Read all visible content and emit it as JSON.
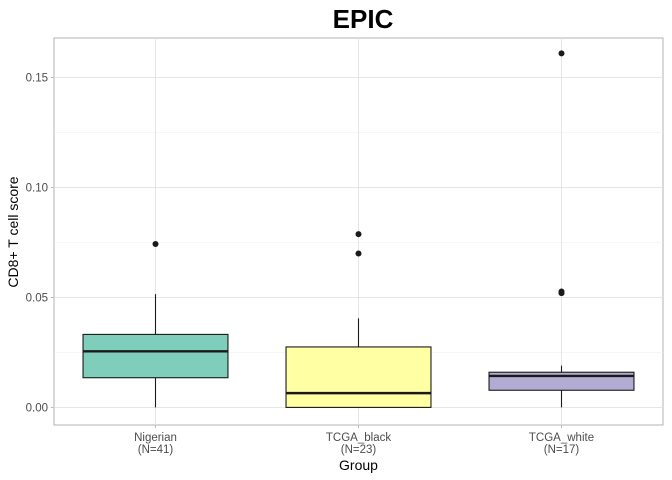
{
  "chart_data": {
    "type": "boxplot",
    "title": "EPIC",
    "xlabel": "Group",
    "ylabel": "CD8+ T cell score",
    "ylim": [
      -0.008,
      0.168
    ],
    "yticks": [
      0.0,
      0.05,
      0.1,
      0.15
    ],
    "ytick_labels": [
      "0.00",
      "0.05",
      "0.10",
      "0.15"
    ],
    "grid": true,
    "categories": [
      {
        "name": "Nigerian",
        "n_label": "(N=41)"
      },
      {
        "name": "TCGA_black",
        "n_label": "(N=23)"
      },
      {
        "name": "TCGA_white",
        "n_label": "(N=17)"
      }
    ],
    "boxes": [
      {
        "group": "Nigerian",
        "color": "#7fcdbb",
        "whisker_low": 0.0,
        "q1": 0.0135,
        "median": 0.0255,
        "q3": 0.0332,
        "whisker_high": 0.0515,
        "outliers": [
          0.0743
        ]
      },
      {
        "group": "TCGA_black",
        "color": "#ffffa3",
        "whisker_low": 0.0,
        "q1": 0.0,
        "median": 0.0065,
        "q3": 0.0275,
        "whisker_high": 0.0405,
        "outliers": [
          0.07,
          0.0788
        ]
      },
      {
        "group": "TCGA_white",
        "color": "#b2abd2",
        "whisker_low": 0.0,
        "q1": 0.0078,
        "median": 0.0143,
        "q3": 0.016,
        "whisker_high": 0.019,
        "outliers": [
          0.052,
          0.0527,
          0.161
        ]
      }
    ]
  }
}
